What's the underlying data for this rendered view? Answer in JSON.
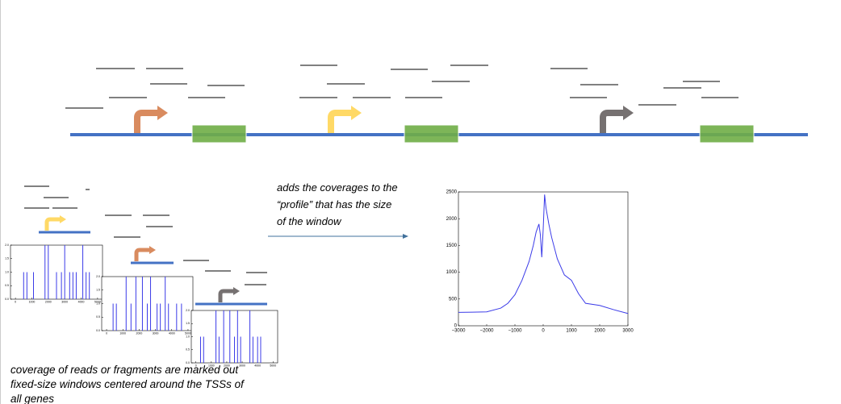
{
  "caption_arrow": "adds the coverages to the “profile” that has the size of the window",
  "caption_left": "coverage of reads or fragments are marked out fixed-size windows centered around the TSSs of all genes",
  "chart_data": [
    {
      "type": "line",
      "color": "#3b3be8",
      "x": [
        -3000,
        -2500,
        -2000,
        -1500,
        -1250,
        -1000,
        -750,
        -500,
        -350,
        -250,
        -150,
        -100,
        -50,
        0,
        50,
        100,
        200,
        300,
        500,
        750,
        1000,
        1250,
        1500,
        2000,
        2500,
        3000
      ],
      "values": [
        250,
        255,
        260,
        330,
        420,
        580,
        850,
        1200,
        1500,
        1750,
        1900,
        1700,
        1280,
        1800,
        2450,
        2200,
        1900,
        1650,
        1250,
        950,
        850,
        600,
        420,
        380,
        300,
        230
      ],
      "xlim": [
        -3000,
        3000
      ],
      "ylim": [
        0,
        2500
      ],
      "xticks": [
        {
          "value": -3000,
          "label": "−3000"
        },
        {
          "value": -2000,
          "label": "−2000"
        },
        {
          "value": -1000,
          "label": "−1000"
        },
        0,
        1000,
        2000,
        3000
      ],
      "yticks": [
        0,
        500,
        1000,
        1500,
        2000,
        2500
      ]
    },
    {
      "type": "bar",
      "color": "#3b3be8",
      "x": [
        500,
        700,
        1100,
        1800,
        2000,
        2500,
        2800,
        3000,
        3300,
        3500,
        3700,
        4100,
        4300,
        4500
      ],
      "values": [
        1,
        1,
        1,
        2,
        2,
        1,
        1,
        2,
        1,
        1,
        1,
        2,
        1,
        1
      ],
      "xlim": [
        -300,
        5300
      ],
      "ylim": [
        0,
        2
      ],
      "xticks": [
        0,
        1000,
        2000,
        3000,
        4000,
        5000
      ],
      "yticks": [
        {
          "value": 0,
          "label": "0.0"
        },
        {
          "value": 0.5,
          "label": "0.5"
        },
        {
          "value": 1,
          "label": "1.0"
        },
        {
          "value": 1.5,
          "label": "1.5"
        },
        {
          "value": 2,
          "label": "2.0"
        }
      ]
    },
    {
      "type": "bar",
      "color": "#3b3be8",
      "x": [
        400,
        600,
        1200,
        1500,
        1800,
        2200,
        2500,
        2700,
        3100,
        3300,
        3600,
        3800,
        4300,
        4600
      ],
      "values": [
        1,
        1,
        2,
        1,
        2,
        2,
        1,
        2,
        1,
        1,
        2,
        1,
        1,
        1
      ],
      "xlim": [
        -300,
        5300
      ],
      "ylim": [
        0,
        2
      ],
      "xticks": [
        0,
        1000,
        2000,
        3000,
        4000,
        5000
      ],
      "yticks": [
        {
          "value": 0,
          "label": "0.0"
        },
        {
          "value": 0.5,
          "label": "0.5"
        },
        {
          "value": 1,
          "label": "1.0"
        },
        {
          "value": 1.5,
          "label": "1.5"
        },
        {
          "value": 2,
          "label": "2.0"
        }
      ]
    },
    {
      "type": "bar",
      "color": "#3b3be8",
      "x": [
        300,
        500,
        1300,
        1500,
        1800,
        2200,
        2500,
        2700,
        2900,
        3500,
        3700,
        4000,
        4200
      ],
      "values": [
        1,
        1,
        2,
        1,
        2,
        2,
        1,
        2,
        1,
        2,
        1,
        1,
        1
      ],
      "xlim": [
        -300,
        5300
      ],
      "ylim": [
        0,
        2
      ],
      "xticks": [
        0,
        1000,
        2000,
        3000,
        4000,
        5000
      ],
      "yticks": [
        {
          "value": 0,
          "label": "0.0"
        },
        {
          "value": 0.5,
          "label": "0.5"
        },
        {
          "value": 1,
          "label": "1.0"
        },
        {
          "value": 1.5,
          "label": "1.5"
        },
        {
          "value": 2,
          "label": "2.0"
        }
      ]
    }
  ]
}
